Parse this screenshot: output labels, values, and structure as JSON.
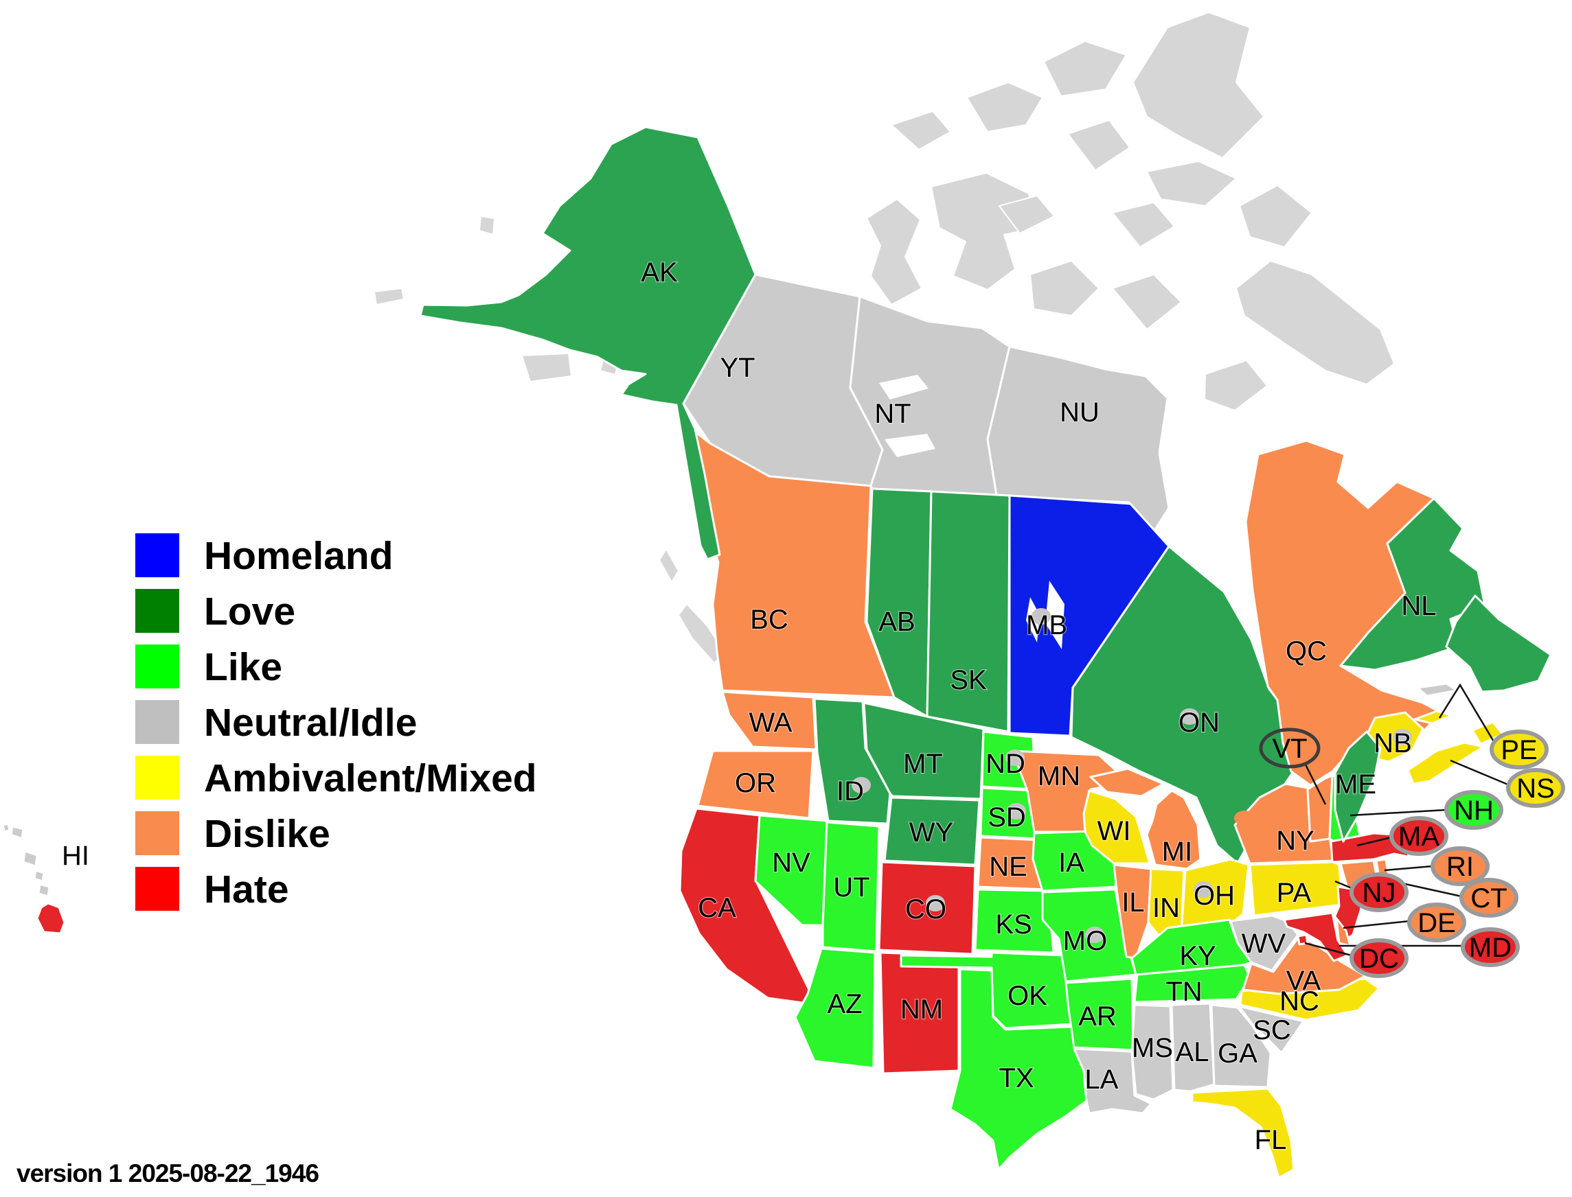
{
  "legend": {
    "items": [
      {
        "label": "Homeland",
        "color": "#0000FF",
        "category": "homeland"
      },
      {
        "label": "Love",
        "color": "#008000",
        "category": "love"
      },
      {
        "label": "Like",
        "color": "#00FF00",
        "category": "like"
      },
      {
        "label": "Neutral/Idle",
        "color": "#BFBFBF",
        "category": "neutral"
      },
      {
        "label": "Ambivalent/Mixed",
        "color": "#FFFF00",
        "category": "ambivalent"
      },
      {
        "label": "Dislike",
        "color": "#F98B4F",
        "category": "dislike"
      },
      {
        "label": "Hate",
        "color": "#FF0000",
        "category": "hate"
      }
    ]
  },
  "map": {
    "palette": {
      "homeland": "#0C1FE8",
      "love": "#2CA351",
      "like": "#2BF52B",
      "neutral": "#CBCBCB",
      "ambivalent": "#F7E30C",
      "dislike": "#F98B4F",
      "hate": "#E42529",
      "island_gray": "#D6D6D6",
      "border": "#FFFFFF",
      "label_dot": "#C6C6C6",
      "marker_dot": "#F98B4F"
    },
    "regions": [
      {
        "id": "YT",
        "label": "YT",
        "category": "neutral"
      },
      {
        "id": "NT",
        "label": "NT",
        "category": "neutral"
      },
      {
        "id": "NU",
        "label": "NU",
        "category": "neutral"
      },
      {
        "id": "BC",
        "label": "BC",
        "category": "dislike"
      },
      {
        "id": "AB",
        "label": "AB",
        "category": "love"
      },
      {
        "id": "SK",
        "label": "SK",
        "category": "love"
      },
      {
        "id": "MB",
        "label": "MB",
        "category": "homeland"
      },
      {
        "id": "ON",
        "label": "ON",
        "category": "love"
      },
      {
        "id": "QC",
        "label": "QC",
        "category": "dislike"
      },
      {
        "id": "NL",
        "label": "NL",
        "category": "love"
      },
      {
        "id": "NLI",
        "label": "",
        "category": "love"
      },
      {
        "id": "ANTI",
        "label": "",
        "category": "neutral"
      },
      {
        "id": "NB",
        "label": "NB",
        "category": "ambivalent"
      },
      {
        "id": "PEI",
        "label": "",
        "category": "ambivalent"
      },
      {
        "id": "NS1",
        "label": "",
        "category": "ambivalent"
      },
      {
        "id": "NS2",
        "label": "",
        "category": "ambivalent"
      },
      {
        "id": "WA",
        "label": "WA",
        "category": "dislike"
      },
      {
        "id": "OR",
        "label": "OR",
        "category": "dislike"
      },
      {
        "id": "CA",
        "label": "CA",
        "category": "hate"
      },
      {
        "id": "ID",
        "label": "ID",
        "category": "love"
      },
      {
        "id": "NV",
        "label": "NV",
        "category": "like"
      },
      {
        "id": "UT",
        "label": "UT",
        "category": "like"
      },
      {
        "id": "AZ",
        "label": "AZ",
        "category": "like"
      },
      {
        "id": "MT",
        "label": "MT",
        "category": "love"
      },
      {
        "id": "WY",
        "label": "WY",
        "category": "love"
      },
      {
        "id": "CO",
        "label": "CO",
        "category": "hate"
      },
      {
        "id": "NM",
        "label": "NM",
        "category": "hate"
      },
      {
        "id": "ND",
        "label": "ND",
        "category": "like"
      },
      {
        "id": "SD",
        "label": "SD",
        "category": "like"
      },
      {
        "id": "NE",
        "label": "NE",
        "category": "dislike"
      },
      {
        "id": "KS",
        "label": "KS",
        "category": "like"
      },
      {
        "id": "OK",
        "label": "OK",
        "category": "like"
      },
      {
        "id": "TX",
        "label": "TX",
        "category": "like"
      },
      {
        "id": "MN",
        "label": "MN",
        "category": "dislike"
      },
      {
        "id": "IA",
        "label": "IA",
        "category": "like"
      },
      {
        "id": "MO",
        "label": "MO",
        "category": "like"
      },
      {
        "id": "AR",
        "label": "AR",
        "category": "like"
      },
      {
        "id": "LA",
        "label": "LA",
        "category": "neutral"
      },
      {
        "id": "WI",
        "label": "WI",
        "category": "ambivalent"
      },
      {
        "id": "MI_UP",
        "label": "",
        "category": "dislike"
      },
      {
        "id": "MI",
        "label": "MI",
        "category": "dislike"
      },
      {
        "id": "IL",
        "label": "IL",
        "category": "dislike"
      },
      {
        "id": "IN",
        "label": "IN",
        "category": "ambivalent"
      },
      {
        "id": "OH",
        "label": "OH",
        "category": "ambivalent"
      },
      {
        "id": "KY",
        "label": "KY",
        "category": "like"
      },
      {
        "id": "TN",
        "label": "TN",
        "category": "like"
      },
      {
        "id": "MS",
        "label": "MS",
        "category": "neutral"
      },
      {
        "id": "AL",
        "label": "AL",
        "category": "neutral"
      },
      {
        "id": "GA",
        "label": "GA",
        "category": "neutral"
      },
      {
        "id": "SC",
        "label": "SC",
        "category": "neutral"
      },
      {
        "id": "NC",
        "label": "NC",
        "category": "ambivalent"
      },
      {
        "id": "VA",
        "label": "VA",
        "category": "dislike"
      },
      {
        "id": "WV",
        "label": "WV",
        "category": "neutral"
      },
      {
        "id": "FL",
        "label": "FL",
        "category": "ambivalent"
      },
      {
        "id": "NY",
        "label": "NY",
        "category": "dislike"
      },
      {
        "id": "LI",
        "label": "",
        "category": "dislike"
      },
      {
        "id": "PA",
        "label": "PA",
        "category": "ambivalent"
      },
      {
        "id": "NJ",
        "label": "",
        "category": "hate"
      },
      {
        "id": "DE",
        "label": "",
        "category": "dislike"
      },
      {
        "id": "MD",
        "label": "",
        "category": "hate"
      },
      {
        "id": "DCR",
        "label": "",
        "category": "hate"
      },
      {
        "id": "VT",
        "label": "",
        "category": "dislike"
      },
      {
        "id": "NH",
        "label": "",
        "category": "like"
      },
      {
        "id": "MA",
        "label": "",
        "category": "hate"
      },
      {
        "id": "RI",
        "label": "",
        "category": "dislike"
      },
      {
        "id": "CT",
        "label": "",
        "category": "dislike"
      },
      {
        "id": "ME",
        "label": "ME",
        "category": "love"
      },
      {
        "id": "AK",
        "label": "AK",
        "category": "love"
      },
      {
        "id": "HI1",
        "label": "",
        "category": "neutral"
      },
      {
        "id": "HI2",
        "label": "",
        "category": "neutral"
      },
      {
        "id": "HI3",
        "label": "",
        "category": "neutral"
      },
      {
        "id": "HI4",
        "label": "",
        "category": "neutral"
      },
      {
        "id": "HI5",
        "label": "",
        "category": "neutral"
      },
      {
        "id": "HIBIG",
        "label": "",
        "category": "hate"
      }
    ],
    "callouts": [
      {
        "id": "PE",
        "label": "PE",
        "category": "ambivalent"
      },
      {
        "id": "NS",
        "label": "NS",
        "category": "ambivalent"
      },
      {
        "id": "NH",
        "label": "NH",
        "category": "like"
      },
      {
        "id": "MA",
        "label": "MA",
        "category": "hate"
      },
      {
        "id": "RI",
        "label": "RI",
        "category": "dislike"
      },
      {
        "id": "CT",
        "label": "CT",
        "category": "dislike"
      },
      {
        "id": "NJ",
        "label": "NJ",
        "category": "hate"
      },
      {
        "id": "DE",
        "label": "DE",
        "category": "dislike"
      },
      {
        "id": "MD",
        "label": "MD",
        "category": "hate"
      },
      {
        "id": "DC",
        "label": "DC",
        "category": "hate"
      }
    ],
    "vt_callout": {
      "label": "VT"
    },
    "hawaii_label": "HI"
  },
  "footer": {
    "version_text": "version 1 2025-08-22_1946"
  }
}
